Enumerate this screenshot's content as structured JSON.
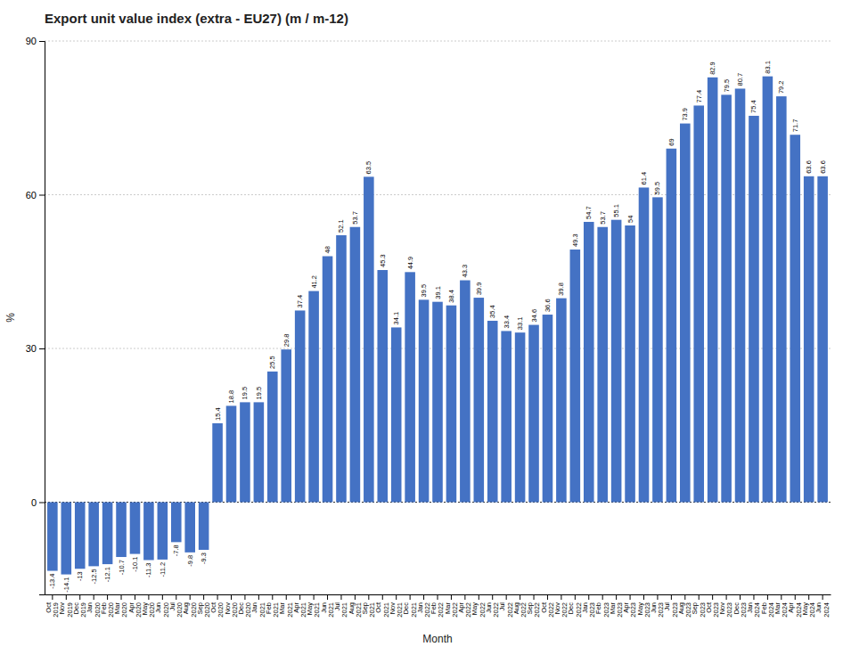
{
  "chart_data": {
    "type": "bar",
    "title": "Export unit value index (extra - EU27) (m / m-12)",
    "x_label": "Month",
    "y_label": "%",
    "color": "#4472C4",
    "categories": [
      "Oct\n2019",
      "Nov\n2019",
      "Dec\n2019",
      "Jan\n2020",
      "Feb\n2020",
      "Mar\n2020",
      "Apr\n2020",
      "May\n2020",
      "Jun\n2020",
      "Jul\n2020",
      "Aug\n2020",
      "Sep\n2020",
      "Oct\n2020",
      "Nov\n2020",
      "Dec\n2020",
      "Jan\n2021",
      "Feb\n2021",
      "Mar\n2021",
      "Apr\n2021",
      "May\n2021",
      "Jun\n2021",
      "Jul\n2021",
      "Aug\n2021",
      "Sep\n2021",
      "Oct\n2021",
      "Nov\n2021",
      "Dec\n2021",
      "Jan\n2022",
      "Feb\n2022",
      "Mar\n2022",
      "Apr\n2022",
      "May\n2022",
      "Jun\n2022",
      "Jul\n2022",
      "Aug\n2022",
      "Sep\n2022",
      "Oct\n2022",
      "Nov\n2022",
      "Dec\n2022",
      "Jan\n2023",
      "Feb\n2023",
      "Mar\n2023",
      "Apr\n2023",
      "May\n2023",
      "Jun\n2023",
      "Jul\n2023",
      "Aug\n2023",
      "Sep\n2023",
      "Oct\n2023",
      "Nov\n2023",
      "Dec\n2023",
      "Jan\n2024",
      "Feb\n2024",
      "Mar\n2024",
      "Apr\n2024",
      "May\n2024",
      "Jun\n2024"
    ],
    "values": [
      -13.4,
      -14.1,
      -13.0,
      -12.5,
      -12.1,
      -10.7,
      -10.1,
      -11.3,
      -11.2,
      -7.8,
      -9.8,
      -9.3,
      15.4,
      18.8,
      19.5,
      19.5,
      25.5,
      29.8,
      37.4,
      41.2,
      48.0,
      52.1,
      53.7,
      63.5,
      45.3,
      34.1,
      44.9,
      39.5,
      39.1,
      38.4,
      43.3,
      39.9,
      35.4,
      33.4,
      33.1,
      34.6,
      36.6,
      39.8,
      49.3,
      54.7,
      53.7,
      55.1,
      54.0,
      61.4,
      59.5,
      69.0,
      73.9,
      77.4,
      82.9,
      79.5,
      80.7,
      75.4,
      83.1,
      79.2,
      71.7,
      63.6,
      63.6
    ],
    "ylim": [
      -18,
      90
    ],
    "yticks": [
      0,
      30,
      60,
      90
    ],
    "grid": true,
    "data_labels": true
  }
}
